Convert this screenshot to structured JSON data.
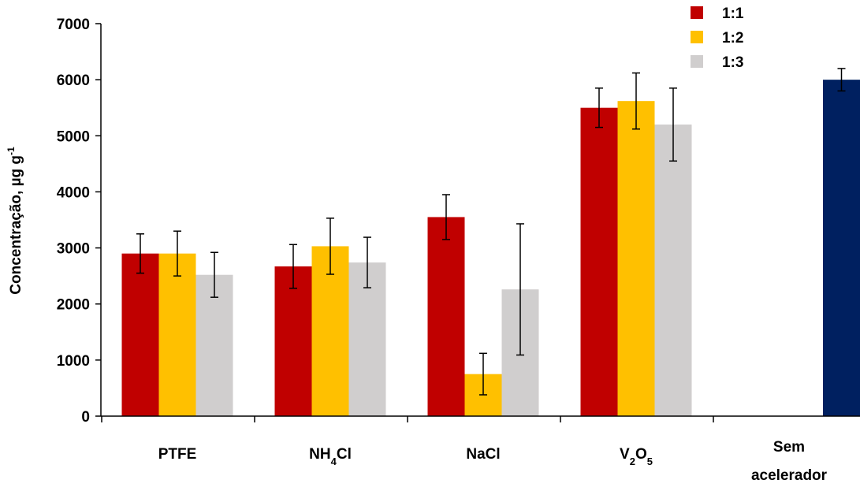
{
  "chart_data": {
    "type": "bar",
    "title": "",
    "xlabel": "",
    "ylabel": "Concentração, µg g",
    "ylabel_superscript": "-1",
    "ylim": [
      0,
      7000
    ],
    "yticks": [
      "0",
      "1000",
      "2000",
      "3000",
      "4000",
      "5000",
      "6000",
      "7000"
    ],
    "ytick_values": [
      0,
      1000,
      2000,
      3000,
      4000,
      5000,
      6000,
      7000
    ],
    "grid": false,
    "legend_position": "top-right",
    "categories": [
      {
        "base": "PTFE",
        "sub1": "",
        "mid": "",
        "sub2": "",
        "line2": ""
      },
      {
        "base": "NH",
        "sub1": "4",
        "mid": "Cl",
        "sub2": "",
        "line2": ""
      },
      {
        "base": "NaCl",
        "sub1": "",
        "mid": "",
        "sub2": "",
        "line2": ""
      },
      {
        "base": "V",
        "sub1": "2",
        "mid": "O",
        "sub2": "5",
        "line2": ""
      },
      {
        "base": "Sem",
        "sub1": "",
        "mid": "",
        "sub2": "",
        "line2": "acelerador"
      }
    ],
    "series": [
      {
        "name": "1:1",
        "color": "#C00000",
        "values": [
          2900,
          2670,
          3550,
          5500,
          null
        ],
        "errors": [
          350,
          390,
          400,
          350,
          null
        ]
      },
      {
        "name": "1:2",
        "color": "#FFC000",
        "values": [
          2900,
          3030,
          750,
          5620,
          null
        ],
        "errors": [
          400,
          500,
          370,
          500,
          null
        ]
      },
      {
        "name": "1:3",
        "color": "#D0CECE",
        "values": [
          2520,
          2740,
          2260,
          5200,
          null
        ],
        "errors": [
          400,
          450,
          1170,
          650,
          null
        ]
      }
    ],
    "extra_bar": {
      "category_index": 4,
      "value": 6000,
      "error": 200,
      "color": "#002060"
    }
  }
}
